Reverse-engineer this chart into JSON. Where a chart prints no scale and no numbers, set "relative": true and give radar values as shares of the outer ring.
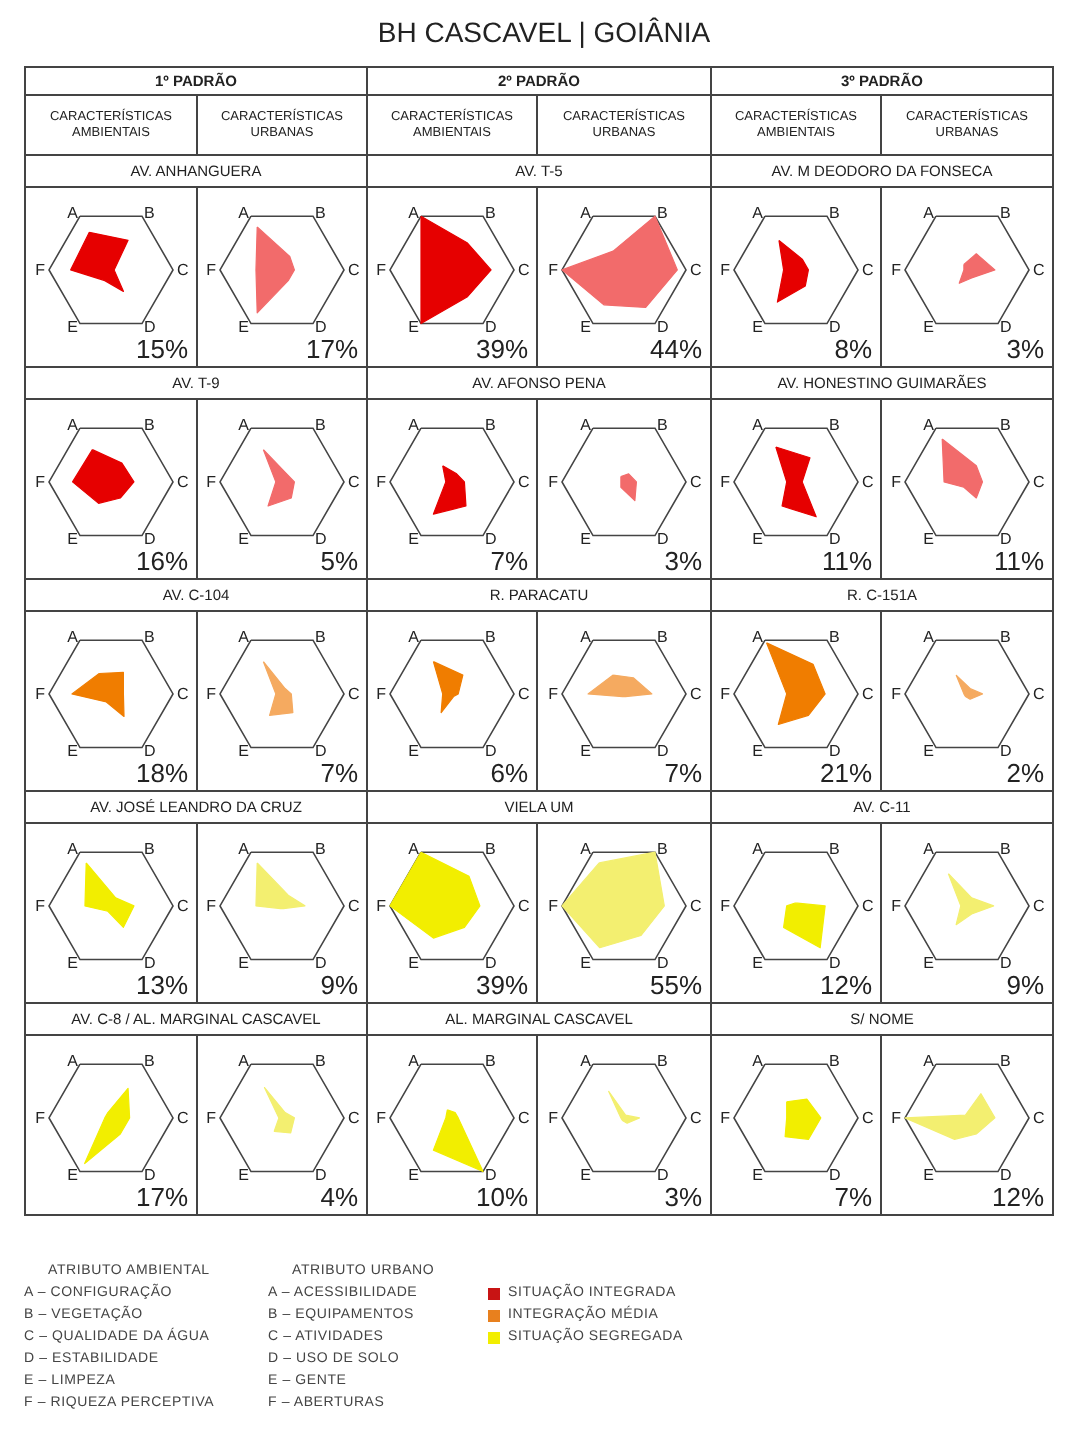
{
  "chart_data": [
    {
      "type": "other",
      "title": "BH CASCAVEL | GOIÂNIA",
      "annotations": [
        "1º PADRÃO",
        "2º PADRÃO",
        "3º PADRÃO",
        "CARACTERÍSTICAS AMBIENTAIS",
        "CARACTERÍSTICAS URBANAS",
        "CARACTERÍSTICAS AMBIENTAIS",
        "CARACTERÍSTICAS URBANAS",
        "CARACTERÍSTICAS AMBIENTAIS",
        "CARACTERÍSTICAS URBANAS"
      ]
    },
    {
      "type": "radar",
      "title": "AV. ANHANGUERA",
      "categories": [
        "A",
        "B",
        "C",
        "D",
        "E",
        "F"
      ],
      "relative": true,
      "series": [
        {
          "color": "#e60000",
          "values": [
            0.7,
            0.55,
            0.05,
            0.4,
            0.2,
            0.65
          ]
        }
      ],
      "annotations": [
        "15%"
      ]
    },
    {
      "type": "radar",
      "categories": [
        "A",
        "B",
        "C",
        "D",
        "E",
        "F"
      ],
      "relative": true,
      "series": [
        {
          "color": "#f26b6b",
          "values": [
            0.8,
            0.25,
            0.2,
            0.2,
            0.8,
            0.42
          ]
        }
      ],
      "annotations": [
        "17%"
      ]
    },
    {
      "type": "radar",
      "title": "AV. T-5",
      "categories": [
        "A",
        "B",
        "C",
        "D",
        "E",
        "F"
      ],
      "relative": true,
      "series": [
        {
          "color": "#e60000",
          "values": [
            1,
            0.5,
            0.63,
            0.5,
            1,
            0.5
          ]
        }
      ],
      "annotations": [
        "39%"
      ]
    },
    {
      "type": "radar",
      "categories": [
        "A",
        "B",
        "C",
        "D",
        "E",
        "F"
      ],
      "relative": true,
      "series": [
        {
          "color": "#f26b6b",
          "values": [
            0.35,
            1,
            0.86,
            0.7,
            0.65,
            1
          ]
        }
      ],
      "annotations": [
        "44%"
      ]
    },
    {
      "type": "radar",
      "title": "AV. M DEODORO DA FONSECA",
      "categories": [
        "A",
        "B",
        "C",
        "D",
        "E",
        "F"
      ],
      "relative": true,
      "series": [
        {
          "color": "#e60000",
          "values": [
            0.55,
            0.2,
            0.2,
            0.3,
            0.6,
            0.2
          ]
        }
      ],
      "annotations": [
        "8%"
      ]
    },
    {
      "type": "radar",
      "categories": [
        "A",
        "B",
        "C",
        "D",
        "E",
        "F"
      ],
      "relative": true,
      "series": [
        {
          "color": "#f26b6b",
          "values": [
            0.1,
            0.3,
            0.45,
            0.15,
            0.25,
            0.05
          ]
        }
      ],
      "annotations": [
        "3%"
      ]
    },
    {
      "type": "radar",
      "title": "AV. T-9",
      "categories": [
        "A",
        "B",
        "C",
        "D",
        "E",
        "F"
      ],
      "relative": true,
      "series": [
        {
          "color": "#e60000",
          "values": [
            0.6,
            0.35,
            0.37,
            0.3,
            0.4,
            0.62
          ]
        }
      ],
      "annotations": [
        "16%"
      ]
    },
    {
      "type": "radar",
      "categories": [
        "A",
        "B",
        "C",
        "D",
        "E",
        "F"
      ],
      "relative": true,
      "series": [
        {
          "color": "#f26b6b",
          "values": [
            0.6,
            0.15,
            0.2,
            0.3,
            0.45,
            0.1
          ]
        }
      ],
      "annotations": [
        "5%"
      ]
    },
    {
      "type": "radar",
      "title": "AV. AFONSO PENA",
      "categories": [
        "A",
        "B",
        "C",
        "D",
        "E",
        "F"
      ],
      "relative": true,
      "series": [
        {
          "color": "#e60000",
          "values": [
            0.3,
            0.15,
            0.2,
            0.45,
            0.6,
            0.1
          ]
        }
      ],
      "annotations": [
        "7%"
      ]
    },
    {
      "type": "radar",
      "categories": [
        "A",
        "B",
        "C",
        "D",
        "E",
        "F"
      ],
      "relative": true,
      "series": [
        {
          "color": "#f26b6b",
          "values": [
            0.1,
            0.15,
            0.2,
            0.35,
            0.1,
            0.05
          ]
        }
      ],
      "annotations": [
        "3%"
      ]
    },
    {
      "type": "radar",
      "title": "AV. HONESTINO GUIMARÃES",
      "categories": [
        "A",
        "B",
        "C",
        "D",
        "E",
        "F"
      ],
      "relative": true,
      "series": [
        {
          "color": "#e60000",
          "values": [
            0.65,
            0.45,
            0.1,
            0.65,
            0.45,
            0.15
          ]
        }
      ],
      "annotations": [
        "11%"
      ]
    },
    {
      "type": "radar",
      "categories": [
        "A",
        "B",
        "C",
        "D",
        "E",
        "F"
      ],
      "relative": true,
      "series": [
        {
          "color": "#f26b6b",
          "values": [
            0.8,
            0.3,
            0.25,
            0.3,
            0.1,
            0.37
          ]
        }
      ],
      "annotations": [
        "11%"
      ]
    },
    {
      "type": "radar",
      "title": "AV. C-104",
      "categories": [
        "A",
        "B",
        "C",
        "D",
        "E",
        "F"
      ],
      "relative": true,
      "series": [
        {
          "color": "#f07d00",
          "values": [
            0.38,
            0.4,
            0.2,
            0.42,
            0.15,
            0.63
          ]
        }
      ],
      "annotations": [
        "18%"
      ]
    },
    {
      "type": "radar",
      "categories": [
        "A",
        "B",
        "C",
        "D",
        "E",
        "F"
      ],
      "relative": true,
      "series": [
        {
          "color": "#f5aa60",
          "values": [
            0.6,
            0.1,
            0.15,
            0.35,
            0.4,
            0.1
          ]
        }
      ],
      "annotations": [
        "7%"
      ]
    },
    {
      "type": "radar",
      "title": "R. PARACATU",
      "categories": [
        "A",
        "B",
        "C",
        "D",
        "E",
        "F"
      ],
      "relative": true,
      "series": [
        {
          "color": "#f07d00",
          "values": [
            0.6,
            0.35,
            0.1,
            0.05,
            0.35,
            0.15
          ]
        }
      ],
      "annotations": [
        "6%"
      ]
    },
    {
      "type": "radar",
      "categories": [
        "A",
        "B",
        "C",
        "D",
        "E",
        "F"
      ],
      "relative": true,
      "series": [
        {
          "color": "#f5aa60",
          "values": [
            0.35,
            0.3,
            0.45,
            0.05,
            0.05,
            0.58
          ]
        }
      ],
      "annotations": [
        "7%"
      ]
    },
    {
      "type": "radar",
      "title": "R. C-151A",
      "categories": [
        "A",
        "B",
        "C",
        "D",
        "E",
        "F"
      ],
      "relative": true,
      "series": [
        {
          "color": "#f07d00",
          "values": [
            0.95,
            0.55,
            0.47,
            0.4,
            0.57,
            0.15
          ]
        }
      ],
      "annotations": [
        "21%"
      ]
    },
    {
      "type": "radar",
      "categories": [
        "A",
        "B",
        "C",
        "D",
        "E",
        "F"
      ],
      "relative": true,
      "series": [
        {
          "color": "#f5aa60",
          "values": [
            0.35,
            0.1,
            0.25,
            0.1,
            0.05,
            0.05
          ]
        }
      ],
      "annotations": [
        "2%"
      ]
    },
    {
      "type": "radar",
      "title": "AV. JOSÉ LEANDRO DA CRUZ",
      "categories": [
        "A",
        "B",
        "C",
        "D",
        "E",
        "F"
      ],
      "relative": true,
      "series": [
        {
          "color": "#f2ee00",
          "values": [
            0.8,
            0.15,
            0.37,
            0.4,
            0.1,
            0.42
          ]
        }
      ],
      "annotations": [
        "13%"
      ]
    },
    {
      "type": "radar",
      "categories": [
        "A",
        "B",
        "C",
        "D",
        "E",
        "F"
      ],
      "relative": true,
      "series": [
        {
          "color": "#f3ef70",
          "values": [
            0.8,
            0.2,
            0.37,
            0.05,
            0.05,
            0.42
          ]
        }
      ],
      "annotations": [
        "9%"
      ]
    },
    {
      "type": "radar",
      "title": "VIELA UM",
      "categories": [
        "A",
        "B",
        "C",
        "D",
        "E",
        "F"
      ],
      "relative": true,
      "series": [
        {
          "color": "#f2ee00",
          "values": [
            1,
            0.55,
            0.45,
            0.4,
            0.6,
            1
          ]
        }
      ],
      "annotations": [
        "39%"
      ]
    },
    {
      "type": "radar",
      "categories": [
        "A",
        "B",
        "C",
        "D",
        "E",
        "F"
      ],
      "relative": true,
      "series": [
        {
          "color": "#f3ef70",
          "values": [
            0.8,
            1,
            0.65,
            0.55,
            0.78,
            1
          ]
        }
      ],
      "annotations": [
        "55%"
      ]
    },
    {
      "type": "radar",
      "title": "AV. C-11",
      "categories": [
        "A",
        "B",
        "C",
        "D",
        "E",
        "F"
      ],
      "relative": true,
      "series": [
        {
          "color": "#f2ee00",
          "values": [
            0.05,
            0.05,
            0.47,
            0.78,
            0.4,
            0.15
          ]
        }
      ],
      "annotations": [
        "12%"
      ]
    },
    {
      "type": "radar",
      "categories": [
        "A",
        "B",
        "C",
        "D",
        "E",
        "F"
      ],
      "relative": true,
      "series": [
        {
          "color": "#f3ef70",
          "values": [
            0.6,
            0.15,
            0.43,
            0.15,
            0.35,
            0.1
          ]
        }
      ],
      "annotations": [
        "9%"
      ]
    },
    {
      "type": "radar",
      "title": "AV. C-8 / AL. MARGINAL CASCAVEL",
      "categories": [
        "A",
        "B",
        "C",
        "D",
        "E",
        "F"
      ],
      "relative": true,
      "series": [
        {
          "color": "#f2ee00",
          "values": [
            0.1,
            0.55,
            0.3,
            0.3,
            0.85,
            0.1
          ]
        }
      ],
      "annotations": [
        "17%"
      ]
    },
    {
      "type": "radar",
      "categories": [
        "A",
        "B",
        "C",
        "D",
        "E",
        "F"
      ],
      "relative": true,
      "series": [
        {
          "color": "#f3ef70",
          "values": [
            0.57,
            0.1,
            0.2,
            0.28,
            0.25,
            0.05
          ]
        }
      ],
      "annotations": [
        "4%"
      ]
    },
    {
      "type": "radar",
      "title": "AL. MARGINAL CASCAVEL",
      "categories": [
        "A",
        "B",
        "C",
        "D",
        "E",
        "F"
      ],
      "relative": true,
      "series": [
        {
          "color": "#f2ee00",
          "values": [
            0.15,
            0.1,
            0.1,
            1,
            0.6,
            0.1
          ]
        }
      ],
      "annotations": [
        "10%"
      ]
    },
    {
      "type": "radar",
      "categories": [
        "A",
        "B",
        "C",
        "D",
        "E",
        "F"
      ],
      "relative": true,
      "series": [
        {
          "color": "#f3ef70",
          "values": [
            0.5,
            0.05,
            0.25,
            0.1,
            0.05,
            0.05
          ]
        }
      ],
      "annotations": [
        "3%"
      ]
    },
    {
      "type": "radar",
      "title": "S/ NOME",
      "categories": [
        "A",
        "B",
        "C",
        "D",
        "E",
        "F"
      ],
      "relative": true,
      "series": [
        {
          "color": "#f2ee00",
          "values": [
            0.3,
            0.35,
            0.4,
            0.4,
            0.35,
            0.15
          ]
        }
      ],
      "annotations": [
        "7%"
      ]
    },
    {
      "type": "radar",
      "categories": [
        "A",
        "B",
        "C",
        "D",
        "E",
        "F"
      ],
      "relative": true,
      "series": [
        {
          "color": "#f3ef70",
          "values": [
            0.05,
            0.45,
            0.45,
            0.3,
            0.4,
            1
          ]
        }
      ],
      "annotations": [
        "12%"
      ]
    },
    {
      "type": "other",
      "annotations": [
        "ATRIBUTO AMBIENTAL",
        "A – CONFIGURAÇÃO",
        "B – VEGETAÇÃO",
        "C – QUALIDADE DA ÁGUA",
        "D – ESTABILIDADE",
        "E – LIMPEZA",
        "F – RIQUEZA PERCEPTIVA",
        "ATRIBUTO URBANO",
        "A – ACESSIBILIDADE",
        "B – EQUIPAMENTOS",
        "C – ATIVIDADES",
        "D – USO DE SOLO",
        "E – GENTE",
        "F – ABERTURAS"
      ],
      "categories": [
        "SITUAÇÃO INTEGRADA",
        "INTEGRAÇÃO MÉDIA",
        "SITUAÇÃO SEGREGADA"
      ],
      "colors": [
        "#c81414",
        "#e8801e",
        "#f2ee00"
      ]
    }
  ]
}
